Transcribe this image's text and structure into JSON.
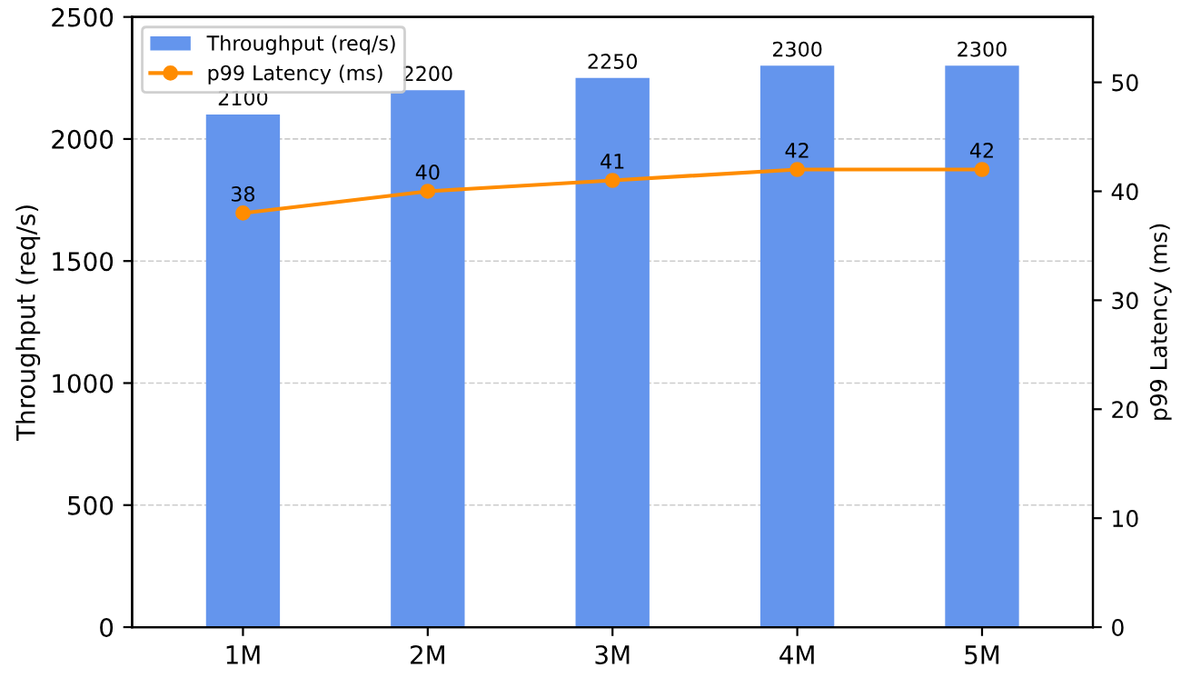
{
  "chart_data": {
    "type": "bar",
    "categories": [
      "1M",
      "2M",
      "3M",
      "4M",
      "5M"
    ],
    "series": [
      {
        "name": "Throughput (req/s)",
        "color": "#6495ed",
        "values": [
          2100,
          2200,
          2250,
          2300,
          2300
        ]
      },
      {
        "name": "p99 Latency (ms)",
        "type": "line",
        "axis": "y2",
        "color": "#ff8c00",
        "values": [
          38,
          40,
          41,
          42,
          42
        ],
        "marker": "circle"
      }
    ],
    "ylabel": "Throughput (req/s)",
    "y2label": "p99 Latency (ms)",
    "ylim": [
      0,
      2500
    ],
    "yticks": [
      0,
      500,
      1000,
      1500,
      2000,
      2500
    ],
    "y2lim": [
      0,
      56
    ],
    "y2ticks": [
      0,
      10,
      20,
      30,
      40,
      50
    ],
    "data_labels": true,
    "grid": "y",
    "legend": "top left"
  }
}
